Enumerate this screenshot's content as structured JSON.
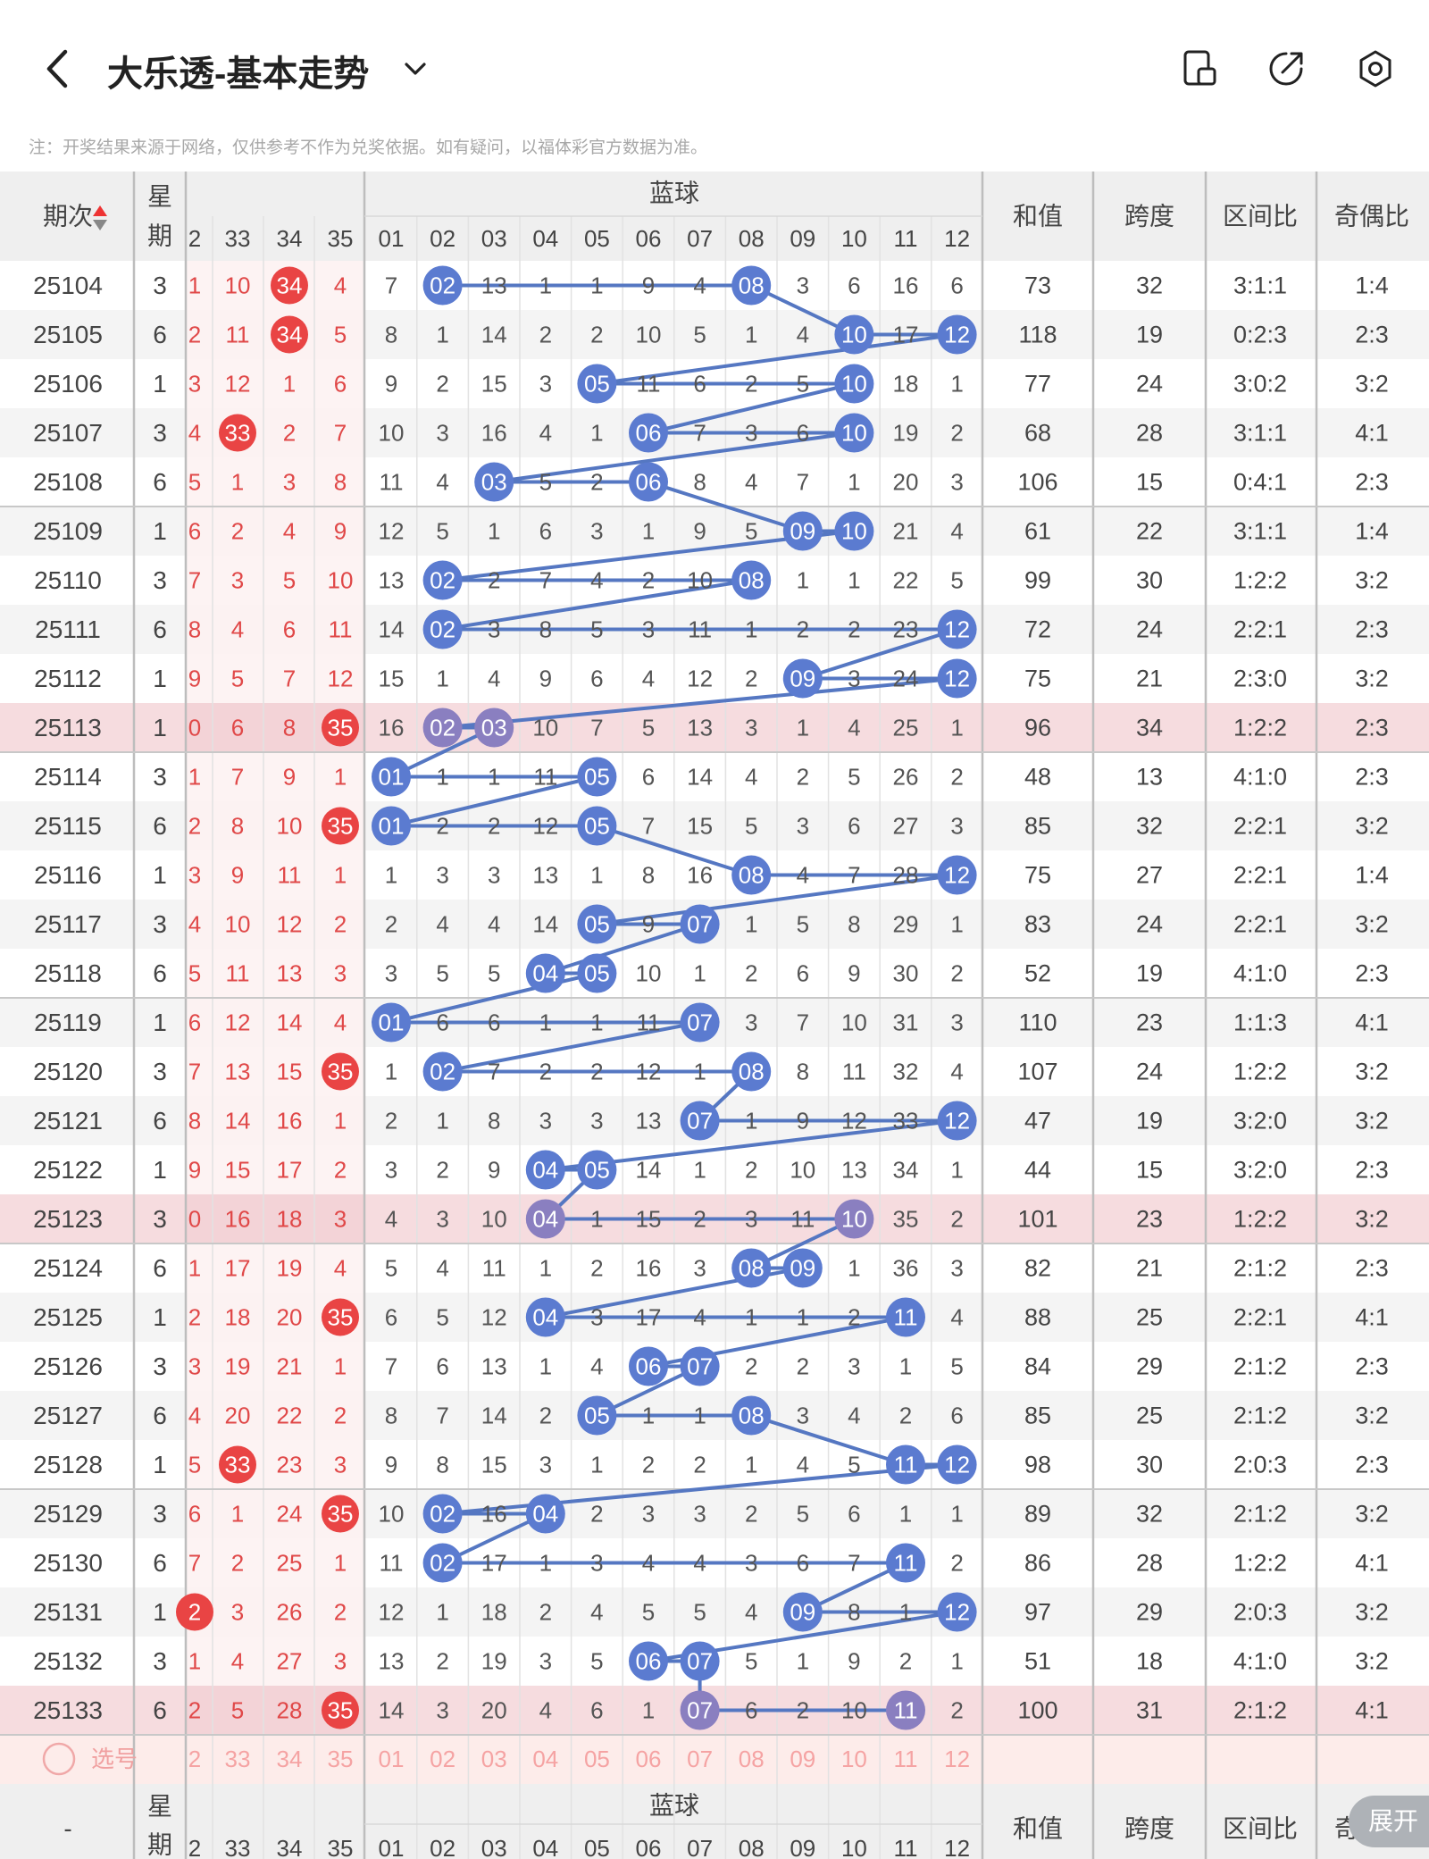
{
  "header": {
    "title": "大乐透-基本走势",
    "note": "注：开奖结果来源于网络，仅供参考不作为兑奖依据。如有疑问，以福体彩官方数据为准。",
    "icons": [
      "back-icon",
      "chevron-down-icon",
      "document-icon",
      "share-icon",
      "settings-icon"
    ]
  },
  "table": {
    "col_period": "期次",
    "col_week": "星期",
    "blue_title": "蓝球",
    "red_cols": [
      "2",
      "33",
      "34",
      "35"
    ],
    "blue_cols": [
      "01",
      "02",
      "03",
      "04",
      "05",
      "06",
      "07",
      "08",
      "09",
      "10",
      "11",
      "12"
    ],
    "stat_cols": [
      "和值",
      "跨度",
      "区间比",
      "奇偶比"
    ],
    "rows": [
      {
        "p": "25104",
        "w": "3",
        "r": [
          "1",
          "10",
          "34",
          "4"
        ],
        "rh": [
          2
        ],
        "b": [
          7,
          2,
          13,
          1,
          1,
          9,
          4,
          8,
          3,
          6,
          16,
          6
        ],
        "hit": [
          2,
          8
        ],
        "s": [
          "73",
          "32",
          "3:1:1",
          "1:4"
        ],
        "hl": false
      },
      {
        "p": "25105",
        "w": "6",
        "r": [
          "2",
          "11",
          "34",
          "5"
        ],
        "rh": [
          2
        ],
        "b": [
          8,
          1,
          14,
          2,
          2,
          10,
          5,
          1,
          4,
          10,
          17,
          12
        ],
        "hit": [
          10,
          12
        ],
        "s": [
          "118",
          "19",
          "0:2:3",
          "2:3"
        ],
        "hl": false
      },
      {
        "p": "25106",
        "w": "1",
        "r": [
          "3",
          "12",
          "1",
          "6"
        ],
        "rh": [],
        "b": [
          9,
          2,
          15,
          3,
          5,
          11,
          6,
          2,
          5,
          10,
          18,
          1
        ],
        "hit": [
          5,
          10
        ],
        "s": [
          "77",
          "24",
          "3:0:2",
          "3:2"
        ],
        "hl": false
      },
      {
        "p": "25107",
        "w": "3",
        "r": [
          "4",
          "33",
          "2",
          "7"
        ],
        "rh": [
          1
        ],
        "b": [
          10,
          3,
          16,
          4,
          1,
          6,
          7,
          3,
          6,
          10,
          19,
          2
        ],
        "hit": [
          6,
          10
        ],
        "s": [
          "68",
          "28",
          "3:1:1",
          "4:1"
        ],
        "hl": false
      },
      {
        "p": "25108",
        "w": "6",
        "r": [
          "5",
          "1",
          "3",
          "8"
        ],
        "rh": [],
        "b": [
          11,
          4,
          3,
          5,
          2,
          6,
          8,
          4,
          7,
          1,
          20,
          3
        ],
        "hit": [
          3,
          6
        ],
        "s": [
          "106",
          "15",
          "0:4:1",
          "2:3"
        ],
        "hl": false
      },
      {
        "p": "25109",
        "w": "1",
        "r": [
          "6",
          "2",
          "4",
          "9"
        ],
        "rh": [],
        "b": [
          12,
          5,
          1,
          6,
          3,
          1,
          9,
          5,
          9,
          10,
          21,
          4
        ],
        "hit": [
          9,
          10
        ],
        "s": [
          "61",
          "22",
          "3:1:1",
          "1:4"
        ],
        "hl": false
      },
      {
        "p": "25110",
        "w": "3",
        "r": [
          "7",
          "3",
          "5",
          "10"
        ],
        "rh": [],
        "b": [
          13,
          2,
          2,
          7,
          4,
          2,
          10,
          8,
          1,
          1,
          22,
          5
        ],
        "hit": [
          2,
          8
        ],
        "s": [
          "99",
          "30",
          "1:2:2",
          "3:2"
        ],
        "hl": false
      },
      {
        "p": "25111",
        "w": "6",
        "r": [
          "8",
          "4",
          "6",
          "11"
        ],
        "rh": [],
        "b": [
          14,
          2,
          3,
          8,
          5,
          3,
          11,
          1,
          2,
          2,
          23,
          12
        ],
        "hit": [
          2,
          12
        ],
        "s": [
          "72",
          "24",
          "2:2:1",
          "2:3"
        ],
        "hl": false
      },
      {
        "p": "25112",
        "w": "1",
        "r": [
          "9",
          "5",
          "7",
          "12"
        ],
        "rh": [],
        "b": [
          15,
          1,
          4,
          9,
          6,
          4,
          12,
          2,
          9,
          3,
          24,
          12
        ],
        "hit": [
          9,
          12
        ],
        "s": [
          "75",
          "21",
          "2:3:0",
          "3:2"
        ],
        "hl": false
      },
      {
        "p": "25113",
        "w": "1",
        "r": [
          "0",
          "6",
          "8",
          "35"
        ],
        "rh": [
          3
        ],
        "b": [
          16,
          2,
          3,
          10,
          7,
          5,
          13,
          3,
          1,
          4,
          25,
          1
        ],
        "hit": [
          2,
          3
        ],
        "s": [
          "96",
          "34",
          "1:2:2",
          "2:3"
        ],
        "hl": true
      },
      {
        "p": "25114",
        "w": "3",
        "r": [
          "1",
          "7",
          "9",
          "1"
        ],
        "rh": [],
        "b": [
          1,
          1,
          1,
          11,
          5,
          6,
          14,
          4,
          2,
          5,
          26,
          2
        ],
        "hit": [
          1,
          5
        ],
        "s": [
          "48",
          "13",
          "4:1:0",
          "2:3"
        ],
        "hl": false
      },
      {
        "p": "25115",
        "w": "6",
        "r": [
          "2",
          "8",
          "10",
          "35"
        ],
        "rh": [
          3
        ],
        "b": [
          1,
          2,
          2,
          12,
          5,
          7,
          15,
          5,
          3,
          6,
          27,
          3
        ],
        "hit": [
          1,
          5
        ],
        "s": [
          "85",
          "32",
          "2:2:1",
          "3:2"
        ],
        "hl": false
      },
      {
        "p": "25116",
        "w": "1",
        "r": [
          "3",
          "9",
          "11",
          "1"
        ],
        "rh": [],
        "b": [
          1,
          3,
          3,
          13,
          1,
          8,
          16,
          8,
          4,
          7,
          28,
          12
        ],
        "hit": [
          8,
          12
        ],
        "s": [
          "75",
          "27",
          "2:2:1",
          "1:4"
        ],
        "hl": false
      },
      {
        "p": "25117",
        "w": "3",
        "r": [
          "4",
          "10",
          "12",
          "2"
        ],
        "rh": [],
        "b": [
          2,
          4,
          4,
          14,
          5,
          9,
          7,
          1,
          5,
          8,
          29,
          1
        ],
        "hit": [
          5,
          7
        ],
        "s": [
          "83",
          "24",
          "2:2:1",
          "3:2"
        ],
        "hl": false
      },
      {
        "p": "25118",
        "w": "6",
        "r": [
          "5",
          "11",
          "13",
          "3"
        ],
        "rh": [],
        "b": [
          3,
          5,
          5,
          4,
          5,
          10,
          1,
          2,
          6,
          9,
          30,
          2
        ],
        "hit": [
          4,
          5
        ],
        "s": [
          "52",
          "19",
          "4:1:0",
          "2:3"
        ],
        "hl": false
      },
      {
        "p": "25119",
        "w": "1",
        "r": [
          "6",
          "12",
          "14",
          "4"
        ],
        "rh": [],
        "b": [
          1,
          6,
          6,
          1,
          1,
          11,
          7,
          3,
          7,
          10,
          31,
          3
        ],
        "hit": [
          1,
          7
        ],
        "s": [
          "110",
          "23",
          "1:1:3",
          "4:1"
        ],
        "hl": false
      },
      {
        "p": "25120",
        "w": "3",
        "r": [
          "7",
          "13",
          "15",
          "35"
        ],
        "rh": [
          3
        ],
        "b": [
          1,
          2,
          7,
          2,
          2,
          12,
          1,
          8,
          8,
          11,
          32,
          4
        ],
        "hit": [
          2,
          8
        ],
        "s": [
          "107",
          "24",
          "1:2:2",
          "3:2"
        ],
        "hl": false
      },
      {
        "p": "25121",
        "w": "6",
        "r": [
          "8",
          "14",
          "16",
          "1"
        ],
        "rh": [],
        "b": [
          2,
          1,
          8,
          3,
          3,
          13,
          7,
          1,
          9,
          12,
          33,
          12
        ],
        "hit": [
          7,
          12
        ],
        "s": [
          "47",
          "19",
          "3:2:0",
          "3:2"
        ],
        "hl": false
      },
      {
        "p": "25122",
        "w": "1",
        "r": [
          "9",
          "15",
          "17",
          "2"
        ],
        "rh": [],
        "b": [
          3,
          2,
          9,
          4,
          5,
          14,
          1,
          2,
          10,
          13,
          34,
          1
        ],
        "hit": [
          4,
          5
        ],
        "s": [
          "44",
          "15",
          "3:2:0",
          "2:3"
        ],
        "hl": false
      },
      {
        "p": "25123",
        "w": "3",
        "r": [
          "0",
          "16",
          "18",
          "3"
        ],
        "rh": [],
        "b": [
          4,
          3,
          10,
          4,
          1,
          15,
          2,
          3,
          11,
          10,
          35,
          2
        ],
        "hit": [
          4,
          10
        ],
        "s": [
          "101",
          "23",
          "1:2:2",
          "3:2"
        ],
        "hl": true
      },
      {
        "p": "25124",
        "w": "6",
        "r": [
          "1",
          "17",
          "19",
          "4"
        ],
        "rh": [],
        "b": [
          5,
          4,
          11,
          1,
          2,
          16,
          3,
          8,
          9,
          1,
          36,
          3
        ],
        "hit": [
          8,
          9
        ],
        "s": [
          "82",
          "21",
          "2:1:2",
          "2:3"
        ],
        "hl": false
      },
      {
        "p": "25125",
        "w": "1",
        "r": [
          "2",
          "18",
          "20",
          "35"
        ],
        "rh": [
          3
        ],
        "b": [
          6,
          5,
          12,
          4,
          3,
          17,
          4,
          1,
          1,
          2,
          11,
          4
        ],
        "hit": [
          4,
          11
        ],
        "s": [
          "88",
          "25",
          "2:2:1",
          "4:1"
        ],
        "hl": false
      },
      {
        "p": "25126",
        "w": "3",
        "r": [
          "3",
          "19",
          "21",
          "1"
        ],
        "rh": [],
        "b": [
          7,
          6,
          13,
          1,
          4,
          6,
          7,
          2,
          2,
          3,
          1,
          5
        ],
        "hit": [
          6,
          7
        ],
        "s": [
          "84",
          "29",
          "2:1:2",
          "2:3"
        ],
        "hl": false
      },
      {
        "p": "25127",
        "w": "6",
        "r": [
          "4",
          "20",
          "22",
          "2"
        ],
        "rh": [],
        "b": [
          8,
          7,
          14,
          2,
          5,
          1,
          1,
          8,
          3,
          4,
          2,
          6
        ],
        "hit": [
          5,
          8
        ],
        "s": [
          "85",
          "25",
          "2:1:2",
          "3:2"
        ],
        "hl": false
      },
      {
        "p": "25128",
        "w": "1",
        "r": [
          "5",
          "33",
          "23",
          "3"
        ],
        "rh": [
          1
        ],
        "b": [
          9,
          8,
          15,
          3,
          1,
          2,
          2,
          1,
          4,
          5,
          11,
          12
        ],
        "hit": [
          11,
          12
        ],
        "s": [
          "98",
          "30",
          "2:0:3",
          "2:3"
        ],
        "hl": false
      },
      {
        "p": "25129",
        "w": "3",
        "r": [
          "6",
          "1",
          "24",
          "35"
        ],
        "rh": [
          3
        ],
        "b": [
          10,
          2,
          16,
          4,
          2,
          3,
          3,
          2,
          5,
          6,
          1,
          1
        ],
        "hit": [
          2,
          4
        ],
        "s": [
          "89",
          "32",
          "2:1:2",
          "3:2"
        ],
        "hl": false
      },
      {
        "p": "25130",
        "w": "6",
        "r": [
          "7",
          "2",
          "25",
          "1"
        ],
        "rh": [],
        "b": [
          11,
          2,
          17,
          1,
          3,
          4,
          4,
          3,
          6,
          7,
          11,
          2
        ],
        "hit": [
          2,
          11
        ],
        "s": [
          "86",
          "28",
          "1:2:2",
          "4:1"
        ],
        "hl": false
      },
      {
        "p": "25131",
        "w": "1",
        "r": [
          "2",
          "3",
          "26",
          "2"
        ],
        "rh": [
          0
        ],
        "b": [
          12,
          1,
          18,
          2,
          4,
          5,
          5,
          4,
          9,
          8,
          1,
          12
        ],
        "hit": [
          9,
          12
        ],
        "s": [
          "97",
          "29",
          "2:0:3",
          "3:2"
        ],
        "hl": false
      },
      {
        "p": "25132",
        "w": "3",
        "r": [
          "1",
          "4",
          "27",
          "3"
        ],
        "rh": [],
        "b": [
          13,
          2,
          19,
          3,
          5,
          6,
          7,
          5,
          1,
          9,
          2,
          1
        ],
        "hit": [
          6,
          7
        ],
        "s": [
          "51",
          "18",
          "4:1:0",
          "3:2"
        ],
        "hl": false
      },
      {
        "p": "25133",
        "w": "6",
        "r": [
          "2",
          "5",
          "28",
          "35"
        ],
        "rh": [
          3
        ],
        "b": [
          14,
          3,
          20,
          4,
          6,
          1,
          7,
          6,
          2,
          10,
          11,
          2
        ],
        "hit": [
          7,
          11
        ],
        "s": [
          "100",
          "31",
          "2:1:2",
          "4:1"
        ],
        "hl": true
      }
    ],
    "select_label": "选号",
    "footer_period": "-",
    "expand_label": "展开"
  }
}
